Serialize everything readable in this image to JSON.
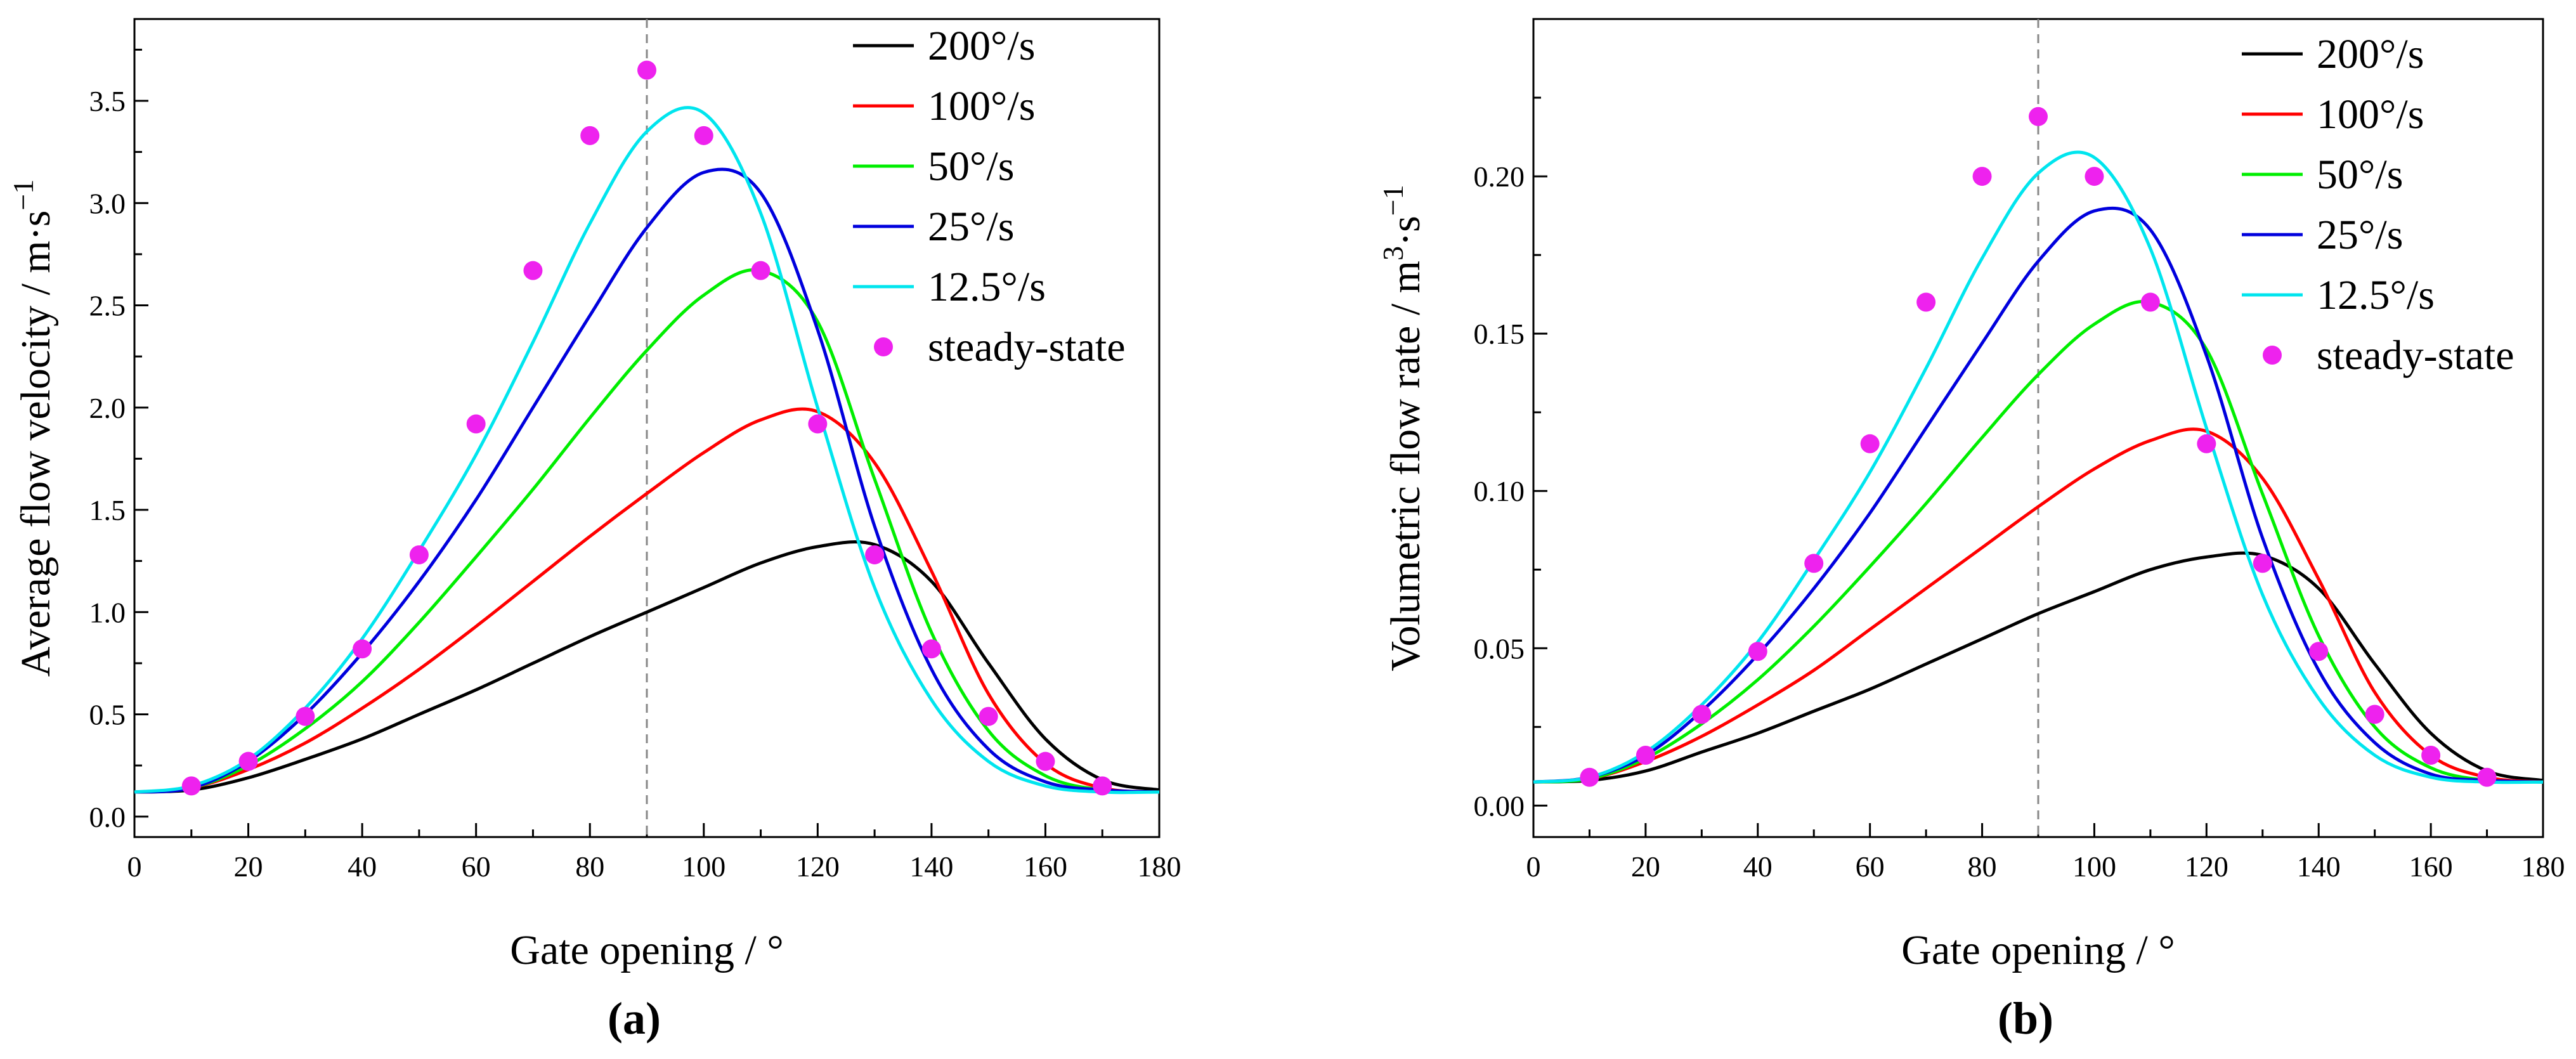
{
  "figure": {
    "panels": [
      "(a)",
      "(b)"
    ]
  },
  "chart_data": [
    {
      "type": "line",
      "panel_label": "(a)",
      "title": "",
      "xlabel": "Gate opening / °",
      "ylabel": "Average flow velocity / m·s",
      "ylabel_superscript": "−1",
      "xlim": [
        0,
        180
      ],
      "ylim": [
        -0.1,
        3.9
      ],
      "x_ticks": [
        0,
        20,
        40,
        60,
        80,
        100,
        120,
        140,
        160,
        180
      ],
      "y_ticks": [
        0.0,
        0.5,
        1.0,
        1.5,
        2.0,
        2.5,
        3.0,
        3.5
      ],
      "y_tick_labels": [
        "0.0",
        "0.5",
        "1.0",
        "1.5",
        "2.0",
        "2.5",
        "3.0",
        "3.5"
      ],
      "reference_line_x": 90,
      "legend_position": "top-right",
      "series": [
        {
          "name": "200°/s",
          "color": "#000000",
          "x": [
            0,
            10,
            20,
            30,
            40,
            50,
            60,
            70,
            80,
            90,
            100,
            110,
            120,
            130,
            140,
            150,
            160,
            170,
            180
          ],
          "values": [
            0.12,
            0.13,
            0.19,
            0.28,
            0.38,
            0.5,
            0.62,
            0.75,
            0.88,
            1.0,
            1.12,
            1.24,
            1.32,
            1.33,
            1.15,
            0.75,
            0.38,
            0.18,
            0.13
          ]
        },
        {
          "name": "100°/s",
          "color": "#ff0000",
          "x": [
            0,
            10,
            20,
            30,
            40,
            50,
            60,
            70,
            80,
            90,
            100,
            110,
            120,
            130,
            140,
            150,
            160,
            170,
            180
          ],
          "values": [
            0.12,
            0.14,
            0.23,
            0.36,
            0.53,
            0.72,
            0.93,
            1.15,
            1.37,
            1.58,
            1.78,
            1.94,
            1.98,
            1.73,
            1.2,
            0.6,
            0.26,
            0.14,
            0.12
          ]
        },
        {
          "name": "50°/s",
          "color": "#00ee00",
          "x": [
            0,
            10,
            20,
            30,
            40,
            50,
            60,
            70,
            80,
            90,
            100,
            110,
            120,
            130,
            140,
            150,
            160,
            170,
            180
          ],
          "values": [
            0.12,
            0.14,
            0.25,
            0.43,
            0.66,
            0.95,
            1.27,
            1.6,
            1.95,
            2.28,
            2.55,
            2.67,
            2.42,
            1.65,
            0.9,
            0.42,
            0.2,
            0.13,
            0.12
          ]
        },
        {
          "name": "25°/s",
          "color": "#0000dd",
          "x": [
            0,
            10,
            20,
            30,
            40,
            50,
            60,
            70,
            80,
            90,
            100,
            110,
            120,
            130,
            140,
            150,
            160,
            170,
            180
          ],
          "values": [
            0.12,
            0.14,
            0.27,
            0.5,
            0.8,
            1.15,
            1.55,
            2.0,
            2.45,
            2.88,
            3.15,
            3.05,
            2.38,
            1.42,
            0.72,
            0.33,
            0.17,
            0.13,
            0.12
          ]
        },
        {
          "name": "12.5°/s",
          "color": "#00e5ee",
          "x": [
            0,
            10,
            20,
            30,
            40,
            50,
            60,
            70,
            80,
            90,
            100,
            110,
            120,
            130,
            140,
            150,
            160,
            170,
            180
          ],
          "values": [
            0.12,
            0.15,
            0.28,
            0.53,
            0.87,
            1.3,
            1.77,
            2.32,
            2.9,
            3.35,
            3.44,
            2.95,
            2.0,
            1.12,
            0.57,
            0.27,
            0.15,
            0.12,
            0.12
          ]
        },
        {
          "name": "steady-state",
          "color": "#ee22ee",
          "style": "markers",
          "x": [
            10,
            20,
            30,
            40,
            50,
            60,
            70,
            80,
            90,
            100,
            110,
            120,
            130,
            140,
            150,
            160,
            170
          ],
          "values": [
            0.15,
            0.27,
            0.49,
            0.82,
            1.28,
            1.92,
            2.67,
            3.33,
            3.65,
            3.33,
            2.67,
            1.92,
            1.28,
            0.82,
            0.49,
            0.27,
            0.15
          ]
        }
      ]
    },
    {
      "type": "line",
      "panel_label": "(b)",
      "title": "",
      "xlabel": "Gate opening / °",
      "ylabel": "Volumetric flow rate / m",
      "ylabel_sup1": "3",
      "ylabel_mid": "·s",
      "ylabel_sup2": "−1",
      "xlim": [
        0,
        180
      ],
      "ylim": [
        -0.01,
        0.25
      ],
      "x_ticks": [
        0,
        20,
        40,
        60,
        80,
        100,
        120,
        140,
        160,
        180
      ],
      "y_ticks": [
        0.0,
        0.05,
        0.1,
        0.15,
        0.2
      ],
      "y_tick_labels": [
        "0.00",
        "0.05",
        "0.10",
        "0.15",
        "0.20"
      ],
      "reference_line_x": 90,
      "legend_position": "top-right",
      "series": [
        {
          "name": "200°/s",
          "color": "#000000",
          "x": [
            0,
            10,
            20,
            30,
            40,
            50,
            60,
            70,
            80,
            90,
            100,
            110,
            120,
            130,
            140,
            150,
            160,
            170,
            180
          ],
          "values": [
            0.0075,
            0.008,
            0.011,
            0.017,
            0.023,
            0.03,
            0.037,
            0.045,
            0.053,
            0.061,
            0.068,
            0.075,
            0.079,
            0.0795,
            0.069,
            0.045,
            0.023,
            0.011,
            0.008
          ]
        },
        {
          "name": "100°/s",
          "color": "#ff0000",
          "x": [
            0,
            10,
            20,
            30,
            40,
            50,
            60,
            70,
            80,
            90,
            100,
            110,
            120,
            130,
            140,
            150,
            160,
            170,
            180
          ],
          "values": [
            0.0075,
            0.0085,
            0.014,
            0.022,
            0.032,
            0.043,
            0.056,
            0.069,
            0.082,
            0.095,
            0.107,
            0.116,
            0.119,
            0.104,
            0.072,
            0.036,
            0.016,
            0.009,
            0.0075
          ]
        },
        {
          "name": "50°/s",
          "color": "#00ee00",
          "x": [
            0,
            10,
            20,
            30,
            40,
            50,
            60,
            70,
            80,
            90,
            100,
            110,
            120,
            130,
            140,
            150,
            160,
            170,
            180
          ],
          "values": [
            0.0075,
            0.0085,
            0.015,
            0.026,
            0.04,
            0.057,
            0.076,
            0.096,
            0.117,
            0.137,
            0.153,
            0.16,
            0.145,
            0.099,
            0.054,
            0.025,
            0.012,
            0.008,
            0.0075
          ]
        },
        {
          "name": "25°/s",
          "color": "#0000dd",
          "x": [
            0,
            10,
            20,
            30,
            40,
            50,
            60,
            70,
            80,
            90,
            100,
            110,
            120,
            130,
            140,
            150,
            160,
            170,
            180
          ],
          "values": [
            0.0075,
            0.009,
            0.016,
            0.03,
            0.048,
            0.069,
            0.093,
            0.12,
            0.147,
            0.173,
            0.189,
            0.183,
            0.143,
            0.085,
            0.043,
            0.02,
            0.01,
            0.008,
            0.0075
          ]
        },
        {
          "name": "12.5°/s",
          "color": "#00e5ee",
          "x": [
            0,
            10,
            20,
            30,
            40,
            50,
            60,
            70,
            80,
            90,
            100,
            110,
            120,
            130,
            140,
            150,
            160,
            170,
            180
          ],
          "values": [
            0.0075,
            0.009,
            0.017,
            0.032,
            0.052,
            0.078,
            0.106,
            0.139,
            0.174,
            0.201,
            0.206,
            0.177,
            0.12,
            0.067,
            0.034,
            0.016,
            0.009,
            0.0075,
            0.0075
          ]
        },
        {
          "name": "steady-state",
          "color": "#ee22ee",
          "style": "markers",
          "x": [
            10,
            20,
            30,
            40,
            50,
            60,
            70,
            80,
            90,
            100,
            110,
            120,
            130,
            140,
            150,
            160,
            170
          ],
          "values": [
            0.009,
            0.016,
            0.029,
            0.049,
            0.077,
            0.115,
            0.16,
            0.2,
            0.219,
            0.2,
            0.16,
            0.115,
            0.077,
            0.049,
            0.029,
            0.016,
            0.009
          ]
        }
      ]
    }
  ]
}
